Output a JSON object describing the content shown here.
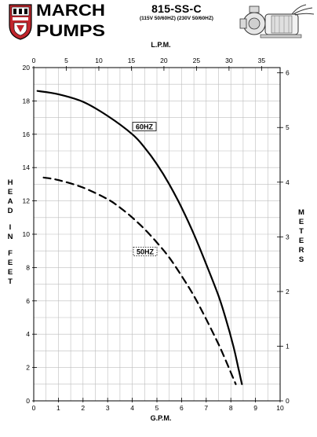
{
  "header": {
    "brand_line1": "MARCH",
    "brand_line2": "PUMPS",
    "model": "815-SS-C",
    "voltage": "(115V 50/60HZ) (230V 50/60HZ)"
  },
  "chart_data": {
    "type": "line",
    "title": "815-SS-C",
    "subtitle": "(115V 50/60HZ) (230V 50/60HZ)",
    "xlabel": "G.P.M.",
    "ylabel": "HEAD IN FEET",
    "x2label": "L.P.M.",
    "y2label": "METERS",
    "xlim": [
      0,
      10
    ],
    "ylim": [
      0,
      20
    ],
    "x2lim": [
      0,
      37.85
    ],
    "y2lim": [
      0,
      6.096
    ],
    "x_ticks": [
      "0",
      "1",
      "2",
      "3",
      "4",
      "5",
      "6",
      "7",
      "8",
      "9",
      "10"
    ],
    "y_ticks": [
      "0",
      "2",
      "4",
      "6",
      "8",
      "10",
      "12",
      "14",
      "16",
      "18",
      "20"
    ],
    "x2_ticks": [
      "0",
      "5",
      "10",
      "15",
      "20",
      "25",
      "30",
      "35"
    ],
    "y2_ticks": [
      "0",
      "1",
      "2",
      "3",
      "4",
      "5",
      "6"
    ],
    "grid": true,
    "series": [
      {
        "name": "60HZ",
        "style": "solid",
        "color": "#000000",
        "x": [
          0.15,
          1.0,
          2.0,
          3.0,
          4.0,
          4.5,
          5.0,
          5.5,
          6.0,
          6.5,
          7.0,
          7.5,
          7.8,
          8.1,
          8.3,
          8.45
        ],
        "y": [
          18.6,
          18.4,
          17.95,
          17.1,
          16.0,
          15.2,
          14.2,
          13.0,
          11.6,
          10.0,
          8.2,
          6.3,
          4.9,
          3.3,
          2.0,
          1.0
        ]
      },
      {
        "name": "50HZ",
        "style": "dashed",
        "color": "#000000",
        "x": [
          0.4,
          1.0,
          2.0,
          3.0,
          3.5,
          4.0,
          4.5,
          5.0,
          5.5,
          6.0,
          6.5,
          7.0,
          7.5,
          7.8,
          8.0,
          8.2
        ],
        "y": [
          13.4,
          13.25,
          12.8,
          12.1,
          11.6,
          11.0,
          10.3,
          9.5,
          8.6,
          7.5,
          6.3,
          4.9,
          3.4,
          2.4,
          1.7,
          1.0
        ]
      }
    ],
    "labels": [
      {
        "series": "60HZ",
        "text": "60HZ",
        "box": "solid"
      },
      {
        "series": "50HZ",
        "text": "50HZ",
        "box": "dotted"
      }
    ]
  },
  "left_label_chars": [
    "H",
    "E",
    "A",
    "D",
    "",
    "I",
    "N",
    "",
    "F",
    "E",
    "E",
    "T"
  ],
  "right_label_chars": [
    "M",
    "E",
    "T",
    "E",
    "R",
    "S"
  ]
}
